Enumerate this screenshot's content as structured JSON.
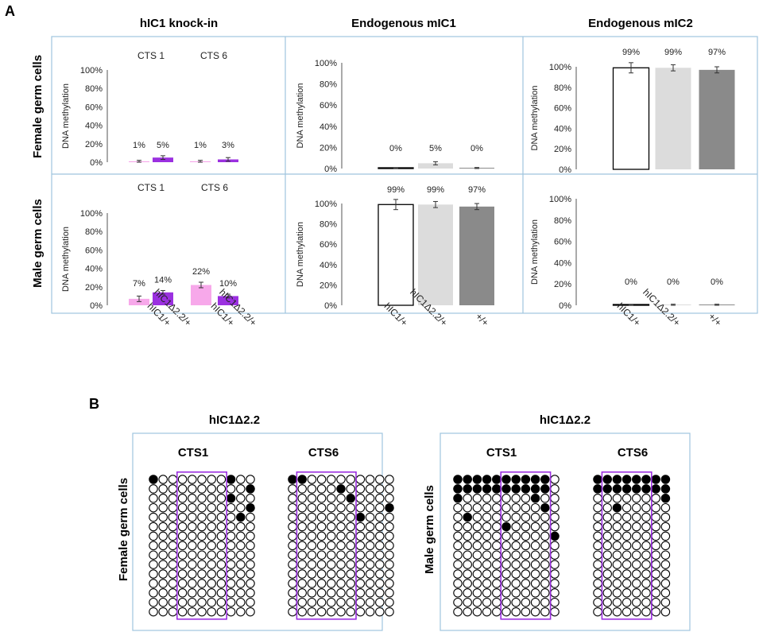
{
  "panel_labels": {
    "a": "A",
    "b": "B"
  },
  "y_axis_label": "DNA methylation",
  "y_ticks": [
    "0%",
    "20%",
    "40%",
    "60%",
    "80%",
    "100%"
  ],
  "colors": {
    "frame": "#9fc4de",
    "hic1_plus_knockin": "#f7a8ea",
    "hic1_d22_knockin": "#9b30e0",
    "hic1_plus_endo": "#ffffff",
    "hic1_d22_endo": "#dcdcdc",
    "wildtype_endo": "#8a8a8a",
    "cts_box": "#9b30e0"
  },
  "chart_data": [
    {
      "type": "bar",
      "title": "hIC1 knock-in",
      "row": "Female germ cells",
      "ylim": [
        0,
        100
      ],
      "groups": [
        {
          "label": "CTS 1",
          "categories": [
            "hIC1/+",
            "hIC1Δ2.2/+"
          ],
          "values": [
            1,
            5
          ],
          "labels": [
            "1%",
            "5%"
          ],
          "errors": [
            1,
            2
          ]
        },
        {
          "label": "CTS 6",
          "categories": [
            "hIC1/+",
            "hIC1Δ2.2/+"
          ],
          "values": [
            1,
            3
          ],
          "labels": [
            "1%",
            "3%"
          ],
          "errors": [
            1,
            2
          ]
        }
      ]
    },
    {
      "type": "bar",
      "title": "Endogenous mIC1",
      "row": "Female germ cells",
      "ylim": [
        0,
        100
      ],
      "categories": [
        "hIC1/+",
        "hIC1Δ2.2/+",
        "+/+"
      ],
      "values": [
        0,
        5,
        0
      ],
      "labels": [
        "0%",
        "5%",
        "0%"
      ],
      "errors": [
        0.5,
        1.5,
        1
      ]
    },
    {
      "type": "bar",
      "title": "Endogenous mIC2",
      "row": "Female germ cells",
      "ylim": [
        0,
        100
      ],
      "categories": [
        "hIC1/+",
        "hIC1Δ2.2/+",
        "+/+"
      ],
      "values": [
        99,
        99,
        97
      ],
      "labels": [
        "99%",
        "99%",
        "97%"
      ],
      "errors": [
        5,
        3,
        3
      ]
    },
    {
      "type": "bar",
      "title": "hIC1 knock-in",
      "row": "Male germ cells",
      "ylim": [
        0,
        100
      ],
      "groups": [
        {
          "label": "CTS 1",
          "categories": [
            "hIC1/+",
            "hIC1Δ2.2/+"
          ],
          "values": [
            7,
            14
          ],
          "labels": [
            "7%",
            "14%"
          ],
          "errors": [
            3,
            2
          ]
        },
        {
          "label": "CTS 6",
          "categories": [
            "hIC1/+",
            "hIC1Δ2.2/+"
          ],
          "values": [
            22,
            10
          ],
          "labels": [
            "22%",
            "10%"
          ],
          "errors": [
            3,
            2
          ]
        }
      ]
    },
    {
      "type": "bar",
      "title": "Endogenous mIC1",
      "row": "Male germ cells",
      "ylim": [
        0,
        100
      ],
      "categories": [
        "hIC1/+",
        "hIC1Δ2.2/+",
        "+/+"
      ],
      "values": [
        99,
        99,
        97
      ],
      "labels": [
        "99%",
        "99%",
        "97%"
      ],
      "errors": [
        5,
        3,
        3
      ]
    },
    {
      "type": "bar",
      "title": "Endogenous mIC2",
      "row": "Male germ cells",
      "ylim": [
        0,
        100
      ],
      "categories": [
        "hIC1/+",
        "hIC1Δ2.2/+",
        "+/+"
      ],
      "values": [
        0,
        0,
        0
      ],
      "labels": [
        "0%",
        "0%",
        "0%"
      ],
      "errors": [
        0.5,
        1,
        1
      ]
    }
  ],
  "column_titles": [
    "hIC1 knock-in",
    "Endogenous mIC1",
    "Endogenous mIC2"
  ],
  "row_titles": [
    "Female germ cells",
    "Male germ cells"
  ],
  "group_labels": [
    "CTS 1",
    "CTS 6"
  ],
  "x_categories_knockin": [
    "hIC1/+",
    "hIC1Δ2.2/+",
    "hIC1/+",
    "hIC1Δ2.2/+"
  ],
  "x_categories_endo": [
    "hIC1/+",
    "hIC1Δ2.2/+",
    "+/+"
  ],
  "panel_b": {
    "panels": [
      {
        "title": "hIC1Δ2.2",
        "row_label": "Female germ cells",
        "grids": [
          {
            "label": "CTS1",
            "highlight_cols": [
              3,
              7
            ],
            "rows": [
              "10000000100",
              "00000000001",
              "00000000100",
              "00000000001",
              "00000000010",
              "00000000000",
              "00000000000",
              "00000000000",
              "00000000000",
              "00000000000",
              "00000000000",
              "00000000000",
              "00000000000",
              "00000000000",
              "00000000000"
            ]
          },
          {
            "label": "CTS6",
            "highlight_cols": [
              1,
              6
            ],
            "rows": [
              "11000000000",
              "00000100000",
              "00000010000",
              "00000000001",
              "00000001000",
              "00000000000",
              "00000000000",
              "00000000000",
              "00000000000",
              "00000000000",
              "00000000000",
              "00000000000",
              "00000000000",
              "00000000000",
              "00000000000"
            ]
          }
        ]
      },
      {
        "title": "hIC1Δ2.2",
        "row_label": "Male germ cells",
        "grids": [
          {
            "label": "CTS1",
            "highlight_cols": [
              5,
              9
            ],
            "rows": [
              "11111111110",
              "11111111110",
              "10000000100",
              "00000000010",
              "01000000000",
              "00000100000",
              "00000000001",
              "00000000000",
              "00000000000",
              "00000000000",
              "00000000000",
              "00000000000",
              "00000000000",
              "00000000000",
              "00000000000"
            ]
          },
          {
            "label": "CTS6",
            "highlight_cols": [
              1,
              5
            ],
            "rows": [
              "11111111",
              "11111111",
              "00000001",
              "00100000",
              "00000000",
              "00000000",
              "00000000",
              "00000000",
              "00000000",
              "00000000",
              "00000000",
              "00000000",
              "00000000",
              "00000000",
              "00000000"
            ]
          }
        ]
      }
    ]
  }
}
